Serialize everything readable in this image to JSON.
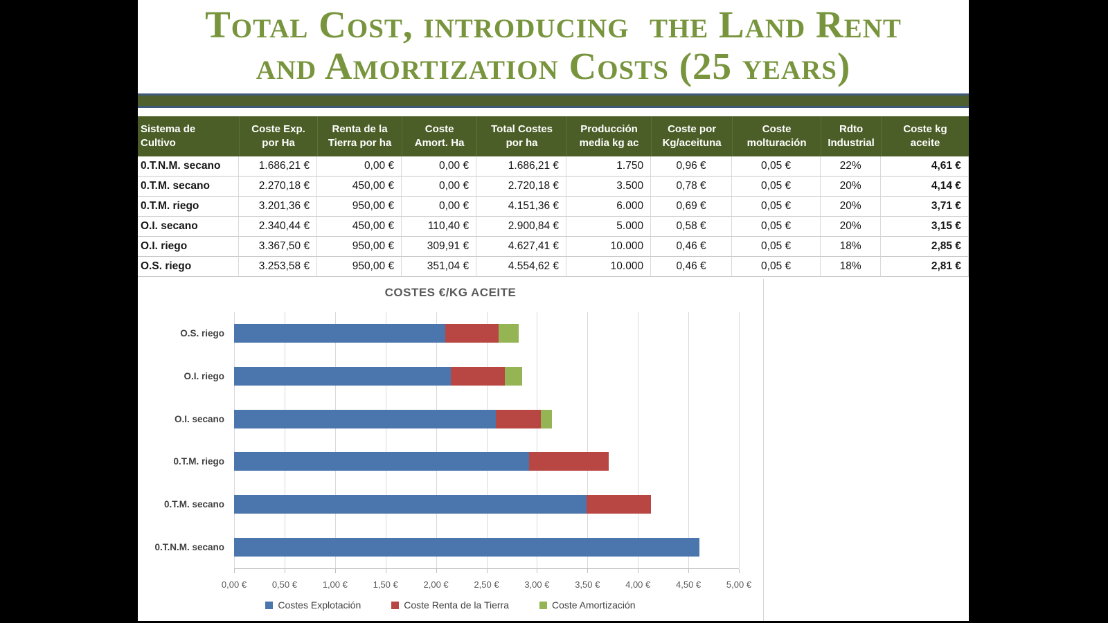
{
  "title": {
    "line1": "Total Cost, introducing  the Land Rent",
    "line2": "and Amortization Costs (25 years)",
    "color": "#78953e"
  },
  "table": {
    "header_bg": "#4b5e27",
    "columns": [
      "Sistema de\nCultivo",
      "Coste Exp.\npor Ha",
      "Renta de la\nTierra por ha",
      "Coste\nAmort. Ha",
      "Total Costes\npor ha",
      "Producción\nmedia kg ac",
      "Coste por\nKg/aceituna",
      "Coste\nmolturación",
      "Rdto\nIndustrial",
      "Coste kg\naceite"
    ],
    "rows": [
      [
        "0.T.N.M. secano",
        "1.686,21 €",
        "0,00 €",
        "0,00 €",
        "1.686,21 €",
        "1.750",
        "0,96 €",
        "0,05 €",
        "22%",
        "4,61 €"
      ],
      [
        "0.T.M. secano",
        "2.270,18 €",
        "450,00 €",
        "0,00 €",
        "2.720,18 €",
        "3.500",
        "0,78 €",
        "0,05 €",
        "20%",
        "4,14 €"
      ],
      [
        "0.T.M. riego",
        "3.201,36 €",
        "950,00 €",
        "0,00 €",
        "4.151,36 €",
        "6.000",
        "0,69 €",
        "0,05 €",
        "20%",
        "3,71 €"
      ],
      [
        "O.I. secano",
        "2.340,44 €",
        "450,00 €",
        "110,40 €",
        "2.900,84 €",
        "5.000",
        "0,58 €",
        "0,05 €",
        "20%",
        "3,15 €"
      ],
      [
        "O.I. riego",
        "3.367,50 €",
        "950,00 €",
        "309,91 €",
        "4.627,41 €",
        "10.000",
        "0,46 €",
        "0,05 €",
        "18%",
        "2,85 €"
      ],
      [
        "O.S. riego",
        "3.253,58 €",
        "950,00 €",
        "351,04 €",
        "4.554,62 €",
        "10.000",
        "0,46 €",
        "0,05 €",
        "18%",
        "2,81 €"
      ]
    ]
  },
  "chart_data": {
    "type": "bar",
    "orientation": "horizontal",
    "stacked": true,
    "title": "COSTES €/KG ACEITE",
    "categories": [
      "O.S. riego",
      "O.I. riego",
      "O.I. secano",
      "0.T.M. riego",
      "0.T.M. secano",
      "0.T.N.M. secano"
    ],
    "series": [
      {
        "name": "Costes Explotación",
        "color": "#4a76ad",
        "values": [
          2.09,
          2.15,
          2.59,
          2.92,
          3.49,
          4.61
        ]
      },
      {
        "name": "Coste Renta de la Tierra",
        "color": "#b84743",
        "values": [
          0.53,
          0.53,
          0.45,
          0.79,
          0.64,
          0.0
        ]
      },
      {
        "name": "Coste Amortización",
        "color": "#95b554",
        "values": [
          0.2,
          0.17,
          0.11,
          0.0,
          0.0,
          0.0
        ]
      }
    ],
    "xlim": [
      0,
      5
    ],
    "x_tick_labels": [
      "0,00 €",
      "0,50 €",
      "1,00 €",
      "1,50 €",
      "2,00 €",
      "2,50 €",
      "3,00 €",
      "3,50 €",
      "4,00 €",
      "4,50 €",
      "5,00 €"
    ],
    "gridlines": "vertical",
    "legend_position": "bottom"
  }
}
